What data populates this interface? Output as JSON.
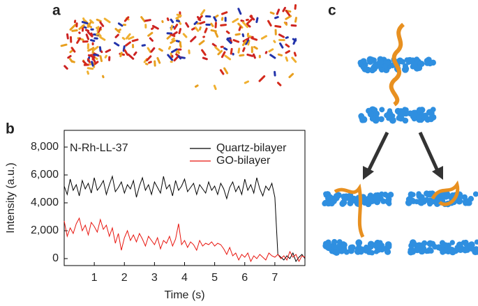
{
  "panels": [
    "a",
    "b",
    "c"
  ],
  "chart_data": {
    "type": "line",
    "annotation": "N-Rh-LL-37",
    "xlabel": "Time (s)",
    "ylabel": "Intensity (a.u.)",
    "xlim": [
      0,
      8
    ],
    "ylim": [
      -500,
      9200
    ],
    "xticks": [
      1,
      2,
      3,
      4,
      5,
      6,
      7
    ],
    "yticks": [
      0,
      {
        "value": 2000,
        "label": "2,000"
      },
      {
        "value": 4000,
        "label": "4,000"
      },
      {
        "value": 6000,
        "label": "6,000"
      },
      {
        "value": 8000,
        "label": "8,000"
      }
    ],
    "legend": "upper right",
    "x": [
      0,
      0.1,
      0.2,
      0.3,
      0.4,
      0.5,
      0.6,
      0.7,
      0.8,
      0.9,
      1,
      1.1,
      1.2,
      1.3,
      1.4,
      1.5,
      1.6,
      1.7,
      1.8,
      1.9,
      2,
      2.1,
      2.2,
      2.3,
      2.4,
      2.5,
      2.6,
      2.7,
      2.8,
      2.9,
      3,
      3.1,
      3.2,
      3.3,
      3.4,
      3.5,
      3.6,
      3.7,
      3.8,
      3.9,
      4,
      4.1,
      4.2,
      4.3,
      4.4,
      4.5,
      4.6,
      4.7,
      4.8,
      4.9,
      5,
      5.1,
      5.2,
      5.3,
      5.4,
      5.5,
      5.6,
      5.7,
      5.8,
      5.9,
      6,
      6.1,
      6.2,
      6.3,
      6.4,
      6.5,
      6.6,
      6.7,
      6.8,
      6.9,
      7,
      7.1,
      7.2,
      7.3,
      7.4,
      7.5,
      7.6,
      7.7,
      7.8,
      7.9,
      8
    ],
    "series": [
      {
        "name": "Quartz-bilayer",
        "color": "#000000",
        "values": [
          5200,
          4600,
          5700,
          4900,
          5300,
          4500,
          5600,
          5000,
          5400,
          4700,
          5800,
          4900,
          5200,
          5600,
          4600,
          5300,
          5900,
          4800,
          5100,
          5500,
          4700,
          5300,
          5000,
          5600,
          4400,
          5200,
          5800,
          4900,
          5300,
          4600,
          5500,
          5100,
          4700,
          5900,
          5000,
          5300,
          4500,
          5600,
          4900,
          5200,
          5700,
          4800,
          5100,
          5400,
          4600,
          5300,
          5000,
          4700,
          5500,
          4900,
          5200,
          4600,
          5400,
          5000,
          4300,
          5100,
          5500,
          4800,
          5200,
          4600,
          5700,
          4900,
          5300,
          4700,
          5800,
          5000,
          4500,
          5200,
          4900,
          5400,
          4400,
          300,
          100,
          -100,
          200,
          0,
          400,
          -200,
          100,
          300,
          0
        ]
      },
      {
        "name": "GO-bilayer",
        "color": "#e8150e",
        "values": [
          2700,
          1600,
          2200,
          1800,
          2500,
          2900,
          2000,
          2400,
          1700,
          2600,
          2300,
          1900,
          2800,
          2100,
          2400,
          1600,
          2200,
          1100,
          1800,
          600,
          1500,
          2000,
          1300,
          1700,
          1200,
          1800,
          1400,
          900,
          1600,
          1300,
          1000,
          1500,
          700,
          1300,
          1100,
          1600,
          900,
          1400,
          2500,
          1000,
          1300,
          800,
          1200,
          1000,
          600,
          1300,
          900,
          1100,
          1000,
          1200,
          900,
          1100,
          1000,
          700,
          300,
          800,
          200,
          400,
          -100,
          300,
          100,
          400,
          -200,
          200,
          0,
          300,
          100,
          -100,
          400,
          200,
          100,
          300,
          0,
          200,
          -100,
          500,
          100,
          300,
          -200,
          200,
          100
        ]
      }
    ]
  }
}
